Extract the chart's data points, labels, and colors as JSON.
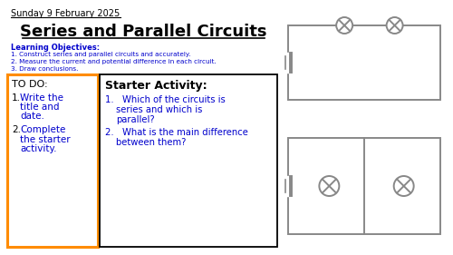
{
  "bg_color": "#ffffff",
  "date_text": "Sunday 9 February 2025",
  "title_text": "Series and Parallel Circuits",
  "learning_obj_title": "Learning Objectives:",
  "learning_obj": [
    "1. Construct series and parallel circuits and accurately.",
    "2. Measure the current and potential difference in each circuit.",
    "3. Draw conclusions."
  ],
  "todo_title": "TO DO:",
  "starter_title": "Starter Activity:",
  "blue_color": "#0000cc",
  "orange_border": "#FF8C00",
  "gray_circuit": "#888888",
  "text_color": "#000000"
}
